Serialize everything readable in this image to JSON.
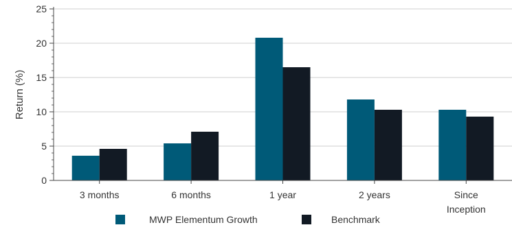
{
  "chart_data": {
    "type": "bar",
    "title": "",
    "xlabel": "",
    "ylabel": "Return (%)",
    "ylim": [
      0,
      25
    ],
    "yticks": [
      0,
      5,
      10,
      15,
      20,
      25
    ],
    "categories": [
      "3 months",
      "6 months",
      "1 year",
      "2 years",
      [
        "Since",
        "Inception"
      ]
    ],
    "series": [
      {
        "name": "MWP Elementum Growth",
        "color": "#005a78",
        "values": [
          3.6,
          5.4,
          20.8,
          11.8,
          10.3
        ]
      },
      {
        "name": "Benchmark",
        "color": "#121a24",
        "values": [
          4.6,
          7.1,
          16.5,
          10.3,
          9.3
        ]
      }
    ],
    "grid": "horizontal",
    "legend": "bottom"
  }
}
